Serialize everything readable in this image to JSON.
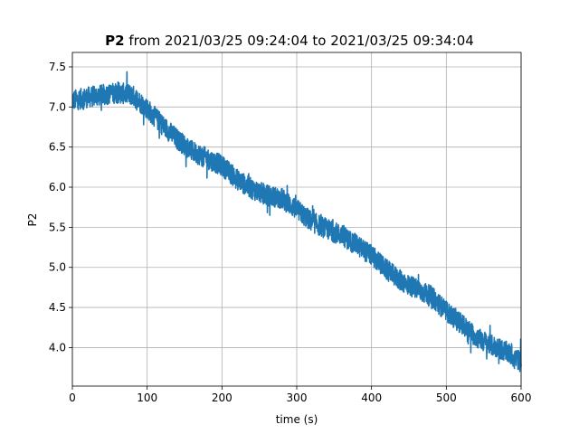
{
  "chart_data": {
    "type": "line",
    "title_bold": "P2",
    "title_rest": " from 2021/03/25 09:24:04 to 2021/03/25 09:34:04",
    "xlabel": "time (s)",
    "ylabel": "P2",
    "xlim": [
      0,
      600
    ],
    "ylim": [
      3.52,
      7.68
    ],
    "xticks": [
      0,
      100,
      200,
      300,
      400,
      500,
      600
    ],
    "yticks": [
      4.0,
      4.5,
      5.0,
      5.5,
      6.0,
      6.5,
      7.0,
      7.5
    ],
    "grid": true,
    "color": "#1f77b4",
    "series": [
      {
        "trend_x": [
          0,
          20,
          40,
          60,
          80,
          100,
          120,
          140,
          160,
          180,
          200,
          220,
          240,
          260,
          280,
          300,
          320,
          340,
          360,
          380,
          400,
          420,
          440,
          460,
          480,
          500,
          520,
          540,
          560,
          580,
          600
        ],
        "trend_y": [
          7.08,
          7.12,
          7.15,
          7.18,
          7.15,
          6.98,
          6.78,
          6.6,
          6.45,
          6.36,
          6.27,
          6.1,
          5.98,
          5.9,
          5.86,
          5.72,
          5.57,
          5.48,
          5.4,
          5.28,
          5.15,
          4.97,
          4.83,
          4.73,
          4.64,
          4.45,
          4.3,
          4.13,
          4.03,
          3.95,
          3.82
        ],
        "noise_amplitude": 0.13
      }
    ]
  }
}
